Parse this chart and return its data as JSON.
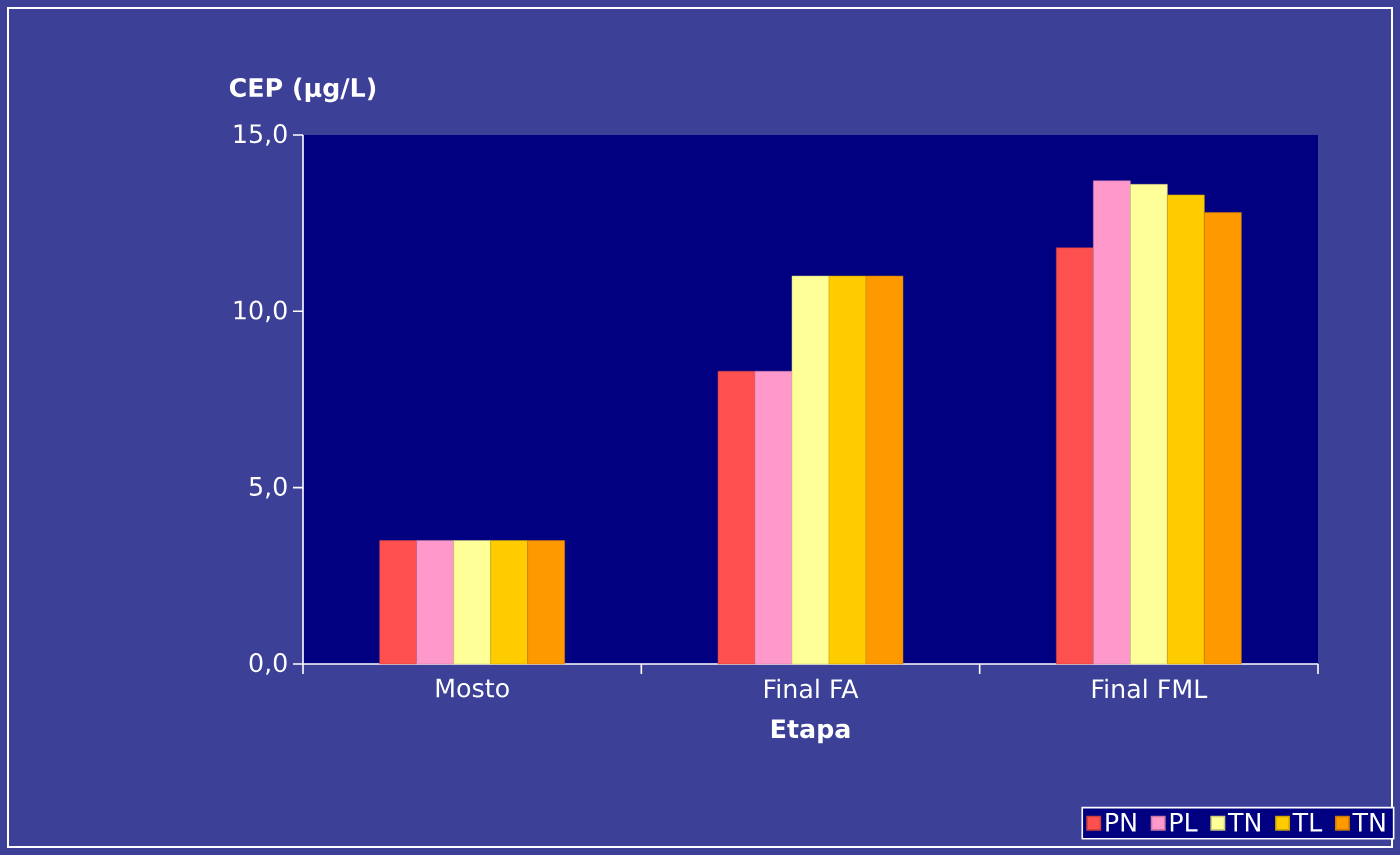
{
  "chart_data": {
    "type": "bar",
    "xlabel": "Etapa",
    "ylabel": "CEP (µg/L)",
    "categories": [
      "Mosto",
      "Final FA",
      "Final FML"
    ],
    "series": [
      {
        "name": "PN",
        "color": "#ff5050",
        "values": [
          3.5,
          8.3,
          11.8
        ]
      },
      {
        "name": "PL",
        "color": "#ff99cc",
        "values": [
          3.5,
          8.3,
          13.7
        ]
      },
      {
        "name": "TN",
        "color": "#ffff99",
        "values": [
          3.5,
          11.0,
          13.6
        ]
      },
      {
        "name": "TL",
        "color": "#ffcc00",
        "values": [
          3.5,
          11.0,
          13.3
        ]
      },
      {
        "name": "TN",
        "color": "#ff9900",
        "values": [
          3.5,
          11.0,
          12.8
        ]
      }
    ],
    "ylim": [
      0,
      15
    ],
    "yticks": [
      {
        "value": 0,
        "label": "0,0"
      },
      {
        "value": 5,
        "label": "5,0"
      },
      {
        "value": 10,
        "label": "10,0"
      },
      {
        "value": 15,
        "label": "15,0"
      }
    ],
    "grid": false,
    "legend": "bottom right"
  }
}
